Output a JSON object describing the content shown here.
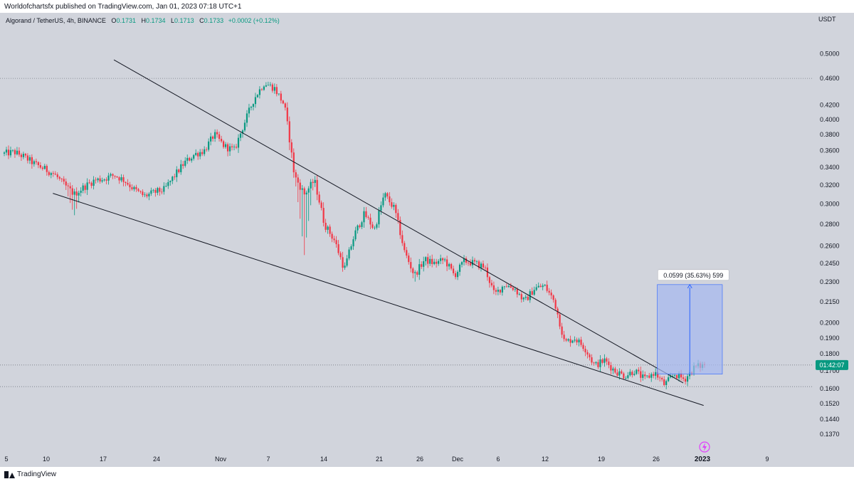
{
  "header": {
    "publisher_text": "Worldofchartsfx published on TradingView.com, Jan 01, 2023 07:18 UTC+1"
  },
  "legend": {
    "symbol": "Algorand / TetherUS, 4h, BINANCE",
    "o_label": "O",
    "o_value": "0.1731",
    "h_label": "H",
    "h_value": "0.1734",
    "l_label": "L",
    "l_value": "0.1713",
    "c_label": "C",
    "c_value": "0.1733",
    "change": "+0.0002 (+0.12%)"
  },
  "colors": {
    "background": "#d1d4dc",
    "up": "#089981",
    "down": "#f23645",
    "trendline": "#131722",
    "measure_fill": "#a5b8f0",
    "measure_line": "#2962ff",
    "price_tag": "#089981",
    "alert_icon": "#e040fb"
  },
  "chart_data": {
    "type": "candlestick",
    "currency_label": "USDT",
    "y_ticks": [
      "0.5000",
      "0.4600",
      "0.4200",
      "0.4000",
      "0.3800",
      "0.3600",
      "0.3400",
      "0.3200",
      "0.3000",
      "0.2800",
      "0.2600",
      "0.2450",
      "0.2300",
      "0.2150",
      "0.2000",
      "0.1900",
      "0.1800",
      "0.1700",
      "0.1600",
      "0.1520",
      "0.1440",
      "0.1370"
    ],
    "x_ticks": [
      "5",
      "10",
      "17",
      "24",
      "Nov",
      "7",
      "14",
      "21",
      "26",
      "Dec",
      "6",
      "12",
      "19",
      "26",
      "2023",
      "9"
    ],
    "current_price_label": "01:42:07",
    "measure_label": "0.0599 (35.63%) 599",
    "ohlc_last": {
      "open": 0.1731,
      "high": 0.1734,
      "low": 0.1713,
      "close": 0.1733
    },
    "path_anchors": [
      [
        0.356,
        0.356
      ],
      [
        0.358,
        0.358
      ],
      [
        0.352,
        0.352
      ],
      [
        0.344,
        0.344
      ],
      [
        0.338,
        0.338
      ],
      [
        0.332,
        0.332
      ],
      [
        0.32,
        0.32
      ],
      [
        0.31,
        0.288
      ],
      [
        0.318,
        0.318
      ],
      [
        0.325,
        0.325
      ],
      [
        0.327,
        0.327
      ],
      [
        0.331,
        0.331
      ],
      [
        0.325,
        0.325
      ],
      [
        0.315,
        0.315
      ],
      [
        0.308,
        0.308
      ],
      [
        0.312,
        0.312
      ],
      [
        0.315,
        0.315
      ],
      [
        0.33,
        0.33
      ],
      [
        0.345,
        0.345
      ],
      [
        0.355,
        0.355
      ],
      [
        0.36,
        0.36
      ],
      [
        0.38,
        0.38
      ],
      [
        0.365,
        0.365
      ],
      [
        0.36,
        0.36
      ],
      [
        0.395,
        0.395
      ],
      [
        0.43,
        0.43
      ],
      [
        0.453,
        0.453
      ],
      [
        0.445,
        0.445
      ],
      [
        0.42,
        0.42
      ],
      [
        0.33,
        0.33
      ],
      [
        0.31,
        0.252
      ],
      [
        0.325,
        0.325
      ],
      [
        0.28,
        0.28
      ],
      [
        0.265,
        0.265
      ],
      [
        0.24,
        0.24
      ],
      [
        0.27,
        0.27
      ],
      [
        0.29,
        0.29
      ],
      [
        0.275,
        0.275
      ],
      [
        0.31,
        0.31
      ],
      [
        0.295,
        0.295
      ],
      [
        0.255,
        0.255
      ],
      [
        0.235,
        0.229
      ],
      [
        0.248,
        0.248
      ],
      [
        0.245,
        0.245
      ],
      [
        0.248,
        0.248
      ],
      [
        0.235,
        0.235
      ],
      [
        0.247,
        0.247
      ],
      [
        0.245,
        0.245
      ],
      [
        0.242,
        0.242
      ],
      [
        0.22,
        0.22
      ],
      [
        0.228,
        0.228
      ],
      [
        0.225,
        0.225
      ],
      [
        0.215,
        0.215
      ],
      [
        0.225,
        0.225
      ],
      [
        0.227,
        0.227
      ],
      [
        0.215,
        0.215
      ],
      [
        0.187,
        0.187
      ],
      [
        0.19,
        0.19
      ],
      [
        0.184,
        0.184
      ],
      [
        0.173,
        0.173
      ],
      [
        0.176,
        0.176
      ],
      [
        0.17,
        0.17
      ],
      [
        0.167,
        0.167
      ],
      [
        0.17,
        0.17
      ],
      [
        0.165,
        0.165
      ],
      [
        0.169,
        0.169
      ],
      [
        0.162,
        0.162
      ],
      [
        0.168,
        0.168
      ],
      [
        0.165,
        0.165
      ],
      [
        0.172,
        0.172
      ],
      [
        0.1733,
        0.1733
      ]
    ],
    "trendline_upper": {
      "start": [
        0.14,
        0.49
      ],
      "end": [
        0.84,
        0.163
      ]
    },
    "trendline_lower": {
      "start": [
        0.065,
        0.311
      ],
      "end": [
        0.865,
        0.151
      ]
    },
    "measure": {
      "from_price": 0.168,
      "to_price": 0.2279,
      "x_start": 0.808,
      "x_end": 0.888
    },
    "dotted_levels": [
      0.46,
      0.1733,
      0.161
    ]
  }
}
